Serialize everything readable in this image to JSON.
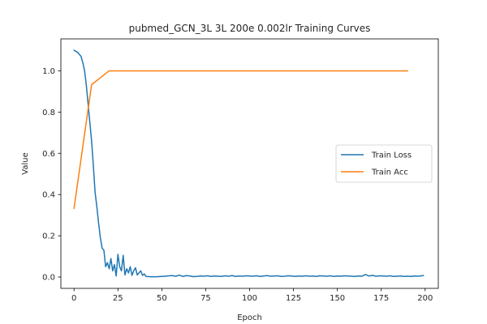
{
  "chart_data": {
    "type": "line",
    "title": "pubmed_GCN_3L  3L  200e  0.002lr  Training Curves",
    "xlabel": "Epoch",
    "ylabel": "Value",
    "xlim": [
      -7.5,
      207.5
    ],
    "ylim": [
      -0.055,
      1.155
    ],
    "xticks": [
      0,
      25,
      50,
      75,
      100,
      125,
      150,
      175,
      200
    ],
    "yticks": [
      0.0,
      0.2,
      0.4,
      0.6,
      0.8,
      1.0
    ],
    "ytick_labels": [
      "0.0",
      "0.2",
      "0.4",
      "0.6",
      "0.8",
      "1.0"
    ],
    "grid": false,
    "legend_position": "center-right",
    "series": [
      {
        "name": "Train Loss",
        "color": "#1f77b4",
        "x": [
          0,
          2,
          4,
          5,
          6,
          7,
          8,
          9,
          10,
          11,
          12,
          13,
          14,
          15,
          16,
          17,
          18,
          19,
          20,
          21,
          22,
          23,
          24,
          25,
          26,
          27,
          28,
          29,
          30,
          31,
          32,
          33,
          34,
          35,
          36,
          37,
          38,
          39,
          40,
          41,
          42,
          43,
          44,
          45,
          46,
          48,
          50,
          52,
          54,
          56,
          58,
          60,
          62,
          64,
          66,
          68,
          70,
          72,
          74,
          76,
          78,
          80,
          82,
          84,
          86,
          88,
          90,
          92,
          94,
          96,
          98,
          100,
          102,
          104,
          106,
          108,
          110,
          112,
          114,
          116,
          118,
          120,
          122,
          124,
          126,
          128,
          130,
          132,
          134,
          136,
          138,
          140,
          142,
          144,
          146,
          148,
          150,
          152,
          154,
          156,
          158,
          160,
          162,
          164,
          166,
          168,
          170,
          172,
          174,
          176,
          178,
          180,
          182,
          184,
          186,
          188,
          190,
          192,
          194,
          196,
          198,
          199
        ],
        "y": [
          1.1,
          1.09,
          1.07,
          1.04,
          1.0,
          0.93,
          0.84,
          0.75,
          0.66,
          0.54,
          0.41,
          0.34,
          0.26,
          0.19,
          0.14,
          0.13,
          0.05,
          0.07,
          0.04,
          0.09,
          0.03,
          0.06,
          0.005,
          0.11,
          0.05,
          0.03,
          0.105,
          0.01,
          0.04,
          0.02,
          0.05,
          0.008,
          0.03,
          0.045,
          0.01,
          0.02,
          0.03,
          0.008,
          0.015,
          0.003,
          0.002,
          0.002,
          0.001,
          0.002,
          0.001,
          0.002,
          0.003,
          0.004,
          0.006,
          0.007,
          0.004,
          0.009,
          0.003,
          0.007,
          0.005,
          0.002,
          0.003,
          0.005,
          0.004,
          0.006,
          0.003,
          0.005,
          0.004,
          0.003,
          0.006,
          0.004,
          0.007,
          0.003,
          0.005,
          0.004,
          0.006,
          0.005,
          0.004,
          0.006,
          0.003,
          0.005,
          0.007,
          0.004,
          0.005,
          0.006,
          0.003,
          0.004,
          0.006,
          0.005,
          0.003,
          0.005,
          0.004,
          0.006,
          0.004,
          0.005,
          0.003,
          0.006,
          0.005,
          0.004,
          0.006,
          0.003,
          0.005,
          0.004,
          0.006,
          0.005,
          0.004,
          0.003,
          0.005,
          0.004,
          0.012,
          0.005,
          0.008,
          0.004,
          0.006,
          0.005,
          0.004,
          0.006,
          0.003,
          0.004,
          0.005,
          0.003,
          0.004,
          0.003,
          0.005,
          0.004,
          0.006,
          0.007
        ]
      },
      {
        "name": "Train Acc",
        "color": "#ff7f0e",
        "x": [
          0,
          10,
          20,
          30,
          40,
          50,
          60,
          70,
          80,
          90,
          100,
          110,
          120,
          130,
          140,
          150,
          160,
          170,
          180,
          190
        ],
        "y": [
          0.333,
          0.933,
          1.0,
          1.0,
          1.0,
          1.0,
          1.0,
          1.0,
          1.0,
          1.0,
          1.0,
          1.0,
          1.0,
          1.0,
          1.0,
          1.0,
          1.0,
          1.0,
          1.0,
          1.0
        ]
      }
    ]
  }
}
